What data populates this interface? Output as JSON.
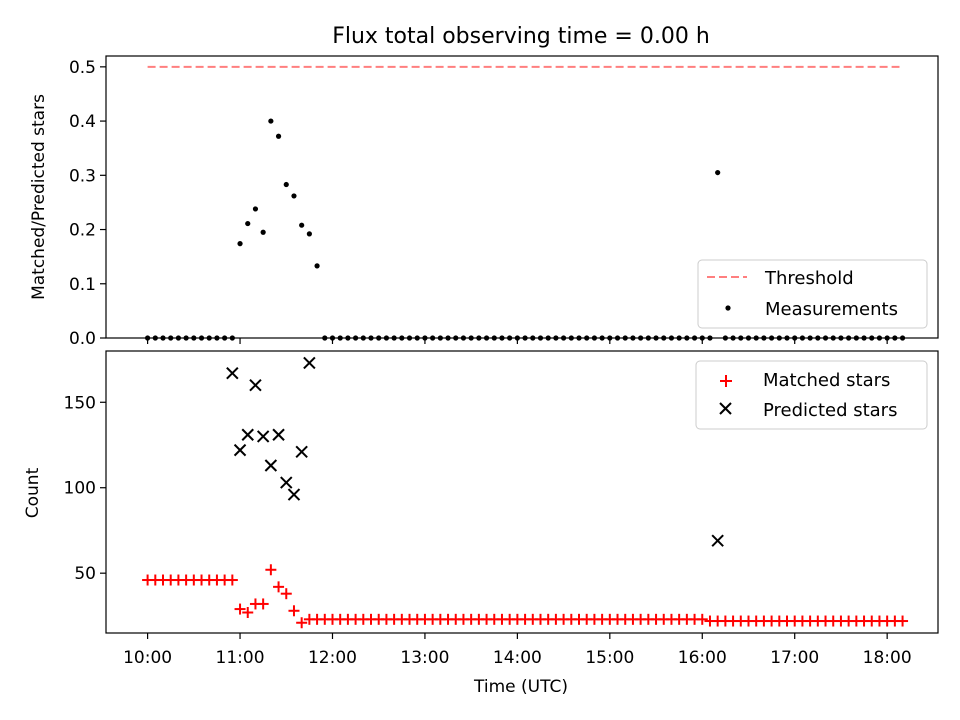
{
  "chart_data": {
    "title": "Flux total observing time = 0.00 h",
    "xlabel": "Time (UTC)",
    "x_ticks": [
      "10:00",
      "11:00",
      "12:00",
      "13:00",
      "14:00",
      "15:00",
      "16:00",
      "17:00",
      "18:00"
    ],
    "x_range_hours": [
      9.55,
      18.55
    ],
    "panels": [
      {
        "id": "ratio",
        "type": "scatter",
        "ylabel": "Matched/Predicted stars",
        "ylim": [
          0,
          0.52
        ],
        "y_ticks": [
          "0.0",
          "0.1",
          "0.2",
          "0.3",
          "0.4",
          "0.5"
        ],
        "legend_position": "lower-right",
        "threshold": {
          "name": "Threshold",
          "value": 0.5,
          "x_start": "10:00",
          "x_end": "18:08",
          "color": "#ff7f7f"
        },
        "series": [
          {
            "name": "Measurements",
            "color": "#000000",
            "marker": "dot",
            "x": [
              "10:00",
              "10:05",
              "10:10",
              "10:15",
              "10:20",
              "10:25",
              "10:30",
              "10:35",
              "10:40",
              "10:45",
              "10:50",
              "10:55",
              "11:00",
              "11:05",
              "11:10",
              "11:15",
              "11:20",
              "11:25",
              "11:30",
              "11:35",
              "11:40",
              "11:45",
              "11:50",
              "11:55",
              "12:00",
              "12:05",
              "12:10",
              "12:15",
              "12:20",
              "12:25",
              "12:30",
              "12:35",
              "12:40",
              "12:45",
              "12:50",
              "12:55",
              "13:00",
              "13:05",
              "13:10",
              "13:15",
              "13:20",
              "13:25",
              "13:30",
              "13:35",
              "13:40",
              "13:45",
              "13:50",
              "13:55",
              "14:00",
              "14:05",
              "14:10",
              "14:15",
              "14:20",
              "14:25",
              "14:30",
              "14:35",
              "14:40",
              "14:45",
              "14:50",
              "14:55",
              "15:00",
              "15:05",
              "15:10",
              "15:15",
              "15:20",
              "15:25",
              "15:30",
              "15:35",
              "15:40",
              "15:45",
              "15:50",
              "15:55",
              "16:00",
              "16:05",
              "16:10",
              "16:15",
              "16:20",
              "16:25",
              "16:30",
              "16:35",
              "16:40",
              "16:45",
              "16:50",
              "16:55",
              "17:00",
              "17:05",
              "17:10",
              "17:15",
              "17:20",
              "17:25",
              "17:30",
              "17:35",
              "17:40",
              "17:45",
              "17:50",
              "17:55",
              "18:00",
              "18:05",
              "18:10"
            ],
            "y": [
              0,
              0,
              0,
              0,
              0,
              0,
              0,
              0,
              0,
              0,
              0,
              0,
              0.174,
              0.211,
              0.238,
              0.195,
              0.4,
              0.372,
              0.283,
              0.262,
              0.208,
              0.192,
              0.133,
              0,
              0,
              0,
              0,
              0,
              0,
              0,
              0,
              0,
              0,
              0,
              0,
              0,
              0,
              0,
              0,
              0,
              0,
              0,
              0,
              0,
              0,
              0,
              0,
              0,
              0,
              0,
              0,
              0,
              0,
              0,
              0,
              0,
              0,
              0,
              0,
              0,
              0,
              0,
              0,
              0,
              0,
              0,
              0,
              0,
              0,
              0,
              0,
              0,
              0,
              0,
              0.305,
              0,
              0,
              0,
              0,
              0,
              0,
              0,
              0,
              0,
              0,
              0,
              0,
              0,
              0,
              0,
              0,
              0,
              0,
              0,
              0,
              0,
              0,
              0,
              0
            ]
          }
        ]
      },
      {
        "id": "counts",
        "type": "scatter",
        "ylabel": "Count",
        "ylim": [
          15,
          180
        ],
        "y_ticks": [
          "50",
          "100",
          "150"
        ],
        "legend_position": "upper-right",
        "series": [
          {
            "name": "Matched stars",
            "color": "#ff0000",
            "marker": "plus",
            "x": [
              "10:00",
              "10:05",
              "10:10",
              "10:15",
              "10:20",
              "10:25",
              "10:30",
              "10:35",
              "10:40",
              "10:45",
              "10:50",
              "10:55",
              "11:00",
              "11:05",
              "11:10",
              "11:15",
              "11:20",
              "11:25",
              "11:30",
              "11:35",
              "11:40",
              "11:45",
              "11:50",
              "11:55",
              "12:00",
              "12:05",
              "12:10",
              "12:15",
              "12:20",
              "12:25",
              "12:30",
              "12:35",
              "12:40",
              "12:45",
              "12:50",
              "12:55",
              "13:00",
              "13:05",
              "13:10",
              "13:15",
              "13:20",
              "13:25",
              "13:30",
              "13:35",
              "13:40",
              "13:45",
              "13:50",
              "13:55",
              "14:00",
              "14:05",
              "14:10",
              "14:15",
              "14:20",
              "14:25",
              "14:30",
              "14:35",
              "14:40",
              "14:45",
              "14:50",
              "14:55",
              "15:00",
              "15:05",
              "15:10",
              "15:15",
              "15:20",
              "15:25",
              "15:30",
              "15:35",
              "15:40",
              "15:45",
              "15:50",
              "15:55",
              "16:00",
              "16:05",
              "16:10",
              "16:15",
              "16:20",
              "16:25",
              "16:30",
              "16:35",
              "16:40",
              "16:45",
              "16:50",
              "16:55",
              "17:00",
              "17:05",
              "17:10",
              "17:15",
              "17:20",
              "17:25",
              "17:30",
              "17:35",
              "17:40",
              "17:45",
              "17:50",
              "17:55",
              "18:00",
              "18:05",
              "18:10"
            ],
            "y": [
              46,
              46,
              46,
              46,
              46,
              46,
              46,
              46,
              46,
              46,
              46,
              46,
              29,
              27,
              32,
              32,
              52,
              42,
              38,
              28,
              21,
              23,
              23,
              23,
              23,
              23,
              23,
              23,
              23,
              23,
              23,
              23,
              23,
              23,
              23,
              23,
              23,
              23,
              23,
              23,
              23,
              23,
              23,
              23,
              23,
              23,
              23,
              23,
              23,
              23,
              23,
              23,
              23,
              23,
              23,
              23,
              23,
              23,
              23,
              23,
              23,
              23,
              23,
              23,
              23,
              23,
              23,
              23,
              23,
              23,
              23,
              23,
              23,
              22,
              22,
              22,
              22,
              22,
              22,
              22,
              22,
              22,
              22,
              22,
              22,
              22,
              22,
              22,
              22,
              22,
              22,
              22,
              22,
              22,
              22,
              22,
              22,
              22,
              22
            ]
          },
          {
            "name": "Predicted stars",
            "color": "#000000",
            "marker": "x",
            "x": [
              "10:55",
              "11:00",
              "11:05",
              "11:10",
              "11:15",
              "11:20",
              "11:25",
              "11:30",
              "11:35",
              "11:40",
              "11:45",
              "16:10"
            ],
            "y": [
              167,
              122,
              131,
              160,
              130,
              113,
              131,
              103,
              96,
              121,
              173,
              69
            ]
          }
        ]
      }
    ]
  }
}
